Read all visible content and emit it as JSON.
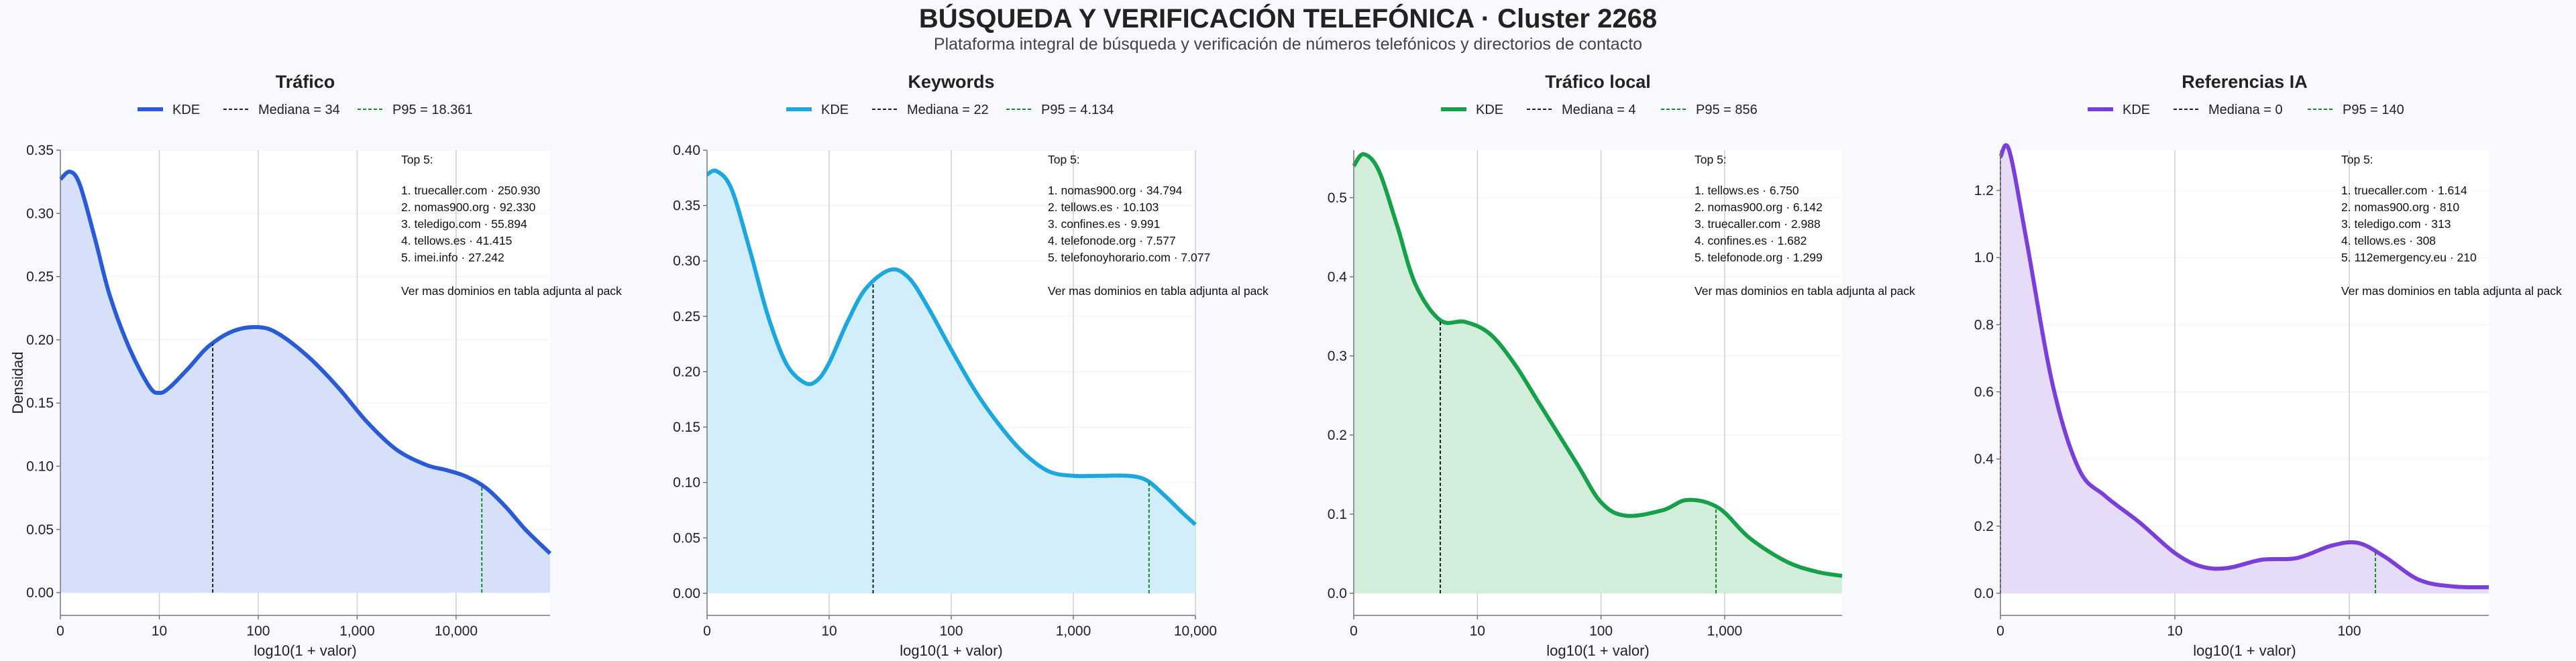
{
  "page": {
    "title": "BÚSQUEDA Y VERIFICACIÓN TELEFÓNICA · Cluster 2268",
    "subtitle": "Plataforma integral de búsqueda y verificación de números telefónicos y directorios de contacto"
  },
  "shared": {
    "xlabel": "log10(1 + valor)",
    "ylabel": "Densidad",
    "legend_kde": "KDE",
    "annotation_header": "Top 5:",
    "annotation_footer": "Ver mas dominios en tabla adjunta al pack"
  },
  "chart_data": [
    {
      "type": "area",
      "title": "Tráfico",
      "color": "#2a5bd7",
      "fill": "#d6e0f8",
      "xlabel": "log10(1 + valor)",
      "ylabel": "Densidad",
      "x_scale": "log10(1+valor)",
      "xlim": [
        0,
        4.95
      ],
      "ylim": [
        -0.018,
        0.35
      ],
      "xticks": [
        0,
        1,
        2,
        3,
        4
      ],
      "xtick_labels": [
        "0",
        "10",
        "100",
        "1,000",
        "10,000"
      ],
      "yticks": [
        0,
        0.05,
        0.1,
        0.15,
        0.2,
        0.25,
        0.3,
        0.35
      ],
      "ytick_labels": [
        "0.00",
        "0.05",
        "0.10",
        "0.15",
        "0.20",
        "0.25",
        "0.30",
        "0.35"
      ],
      "grid": "vertical",
      "legend": [
        "KDE",
        "Mediana = 34",
        "P95 = 18.361"
      ],
      "median_label": "Mediana = 34",
      "p95_label": "P95 = 18.361",
      "median_x": 1.54,
      "p95_x": 4.26,
      "kde": {
        "x": [
          0,
          0.1,
          0.2,
          0.35,
          0.5,
          0.7,
          0.9,
          1.0,
          1.1,
          1.3,
          1.5,
          1.75,
          2.0,
          2.2,
          2.5,
          2.8,
          3.1,
          3.4,
          3.7,
          3.9,
          4.1,
          4.3,
          4.5,
          4.7,
          4.95
        ],
        "y": [
          0.327,
          0.333,
          0.322,
          0.28,
          0.235,
          0.193,
          0.163,
          0.158,
          0.162,
          0.178,
          0.195,
          0.207,
          0.21,
          0.205,
          0.187,
          0.163,
          0.135,
          0.113,
          0.101,
          0.097,
          0.092,
          0.083,
          0.068,
          0.05,
          0.031
        ]
      },
      "top5": [
        "1. truecaller.com · 250.930",
        "2. nomas900.org · 92.330",
        "3. teledigo.com · 55.894",
        "4. tellows.es · 41.415",
        "5. imei.info · 27.242"
      ]
    },
    {
      "type": "area",
      "title": "Keywords",
      "color": "#1ea7dc",
      "fill": "#d2eefa",
      "xlabel": "log10(1 + valor)",
      "ylabel": "Densidad",
      "x_scale": "log10(1+valor)",
      "xlim": [
        0,
        4.0
      ],
      "ylim": [
        -0.02,
        0.4
      ],
      "xticks": [
        0,
        1,
        2,
        3,
        4
      ],
      "xtick_labels": [
        "0",
        "10",
        "100",
        "1,000",
        "10,000"
      ],
      "yticks": [
        0,
        0.05,
        0.1,
        0.15,
        0.2,
        0.25,
        0.3,
        0.35,
        0.4
      ],
      "ytick_labels": [
        "0.00",
        "0.05",
        "0.10",
        "0.15",
        "0.20",
        "0.25",
        "0.30",
        "0.35",
        "0.40"
      ],
      "grid": "vertical",
      "legend": [
        "KDE",
        "Mediana = 22",
        "P95 = 4.134"
      ],
      "median_label": "Mediana = 22",
      "p95_label": "P95 = 4.134",
      "median_x": 1.36,
      "p95_x": 3.62,
      "kde": {
        "x": [
          0,
          0.08,
          0.2,
          0.35,
          0.5,
          0.65,
          0.8,
          0.9,
          1.0,
          1.15,
          1.3,
          1.5,
          1.65,
          1.8,
          2.0,
          2.2,
          2.4,
          2.6,
          2.8,
          3.0,
          3.2,
          3.45,
          3.6,
          3.75,
          3.9,
          4.0
        ],
        "y": [
          0.378,
          0.381,
          0.365,
          0.31,
          0.25,
          0.207,
          0.19,
          0.192,
          0.208,
          0.245,
          0.275,
          0.292,
          0.285,
          0.26,
          0.22,
          0.182,
          0.151,
          0.126,
          0.11,
          0.106,
          0.106,
          0.106,
          0.102,
          0.088,
          0.072,
          0.062
        ]
      },
      "top5": [
        "1. nomas900.org · 34.794",
        "2. tellows.es · 10.103",
        "3. confines.es · 9.991",
        "4. telefonode.org · 7.577",
        "5. telefonoyhorario.com · 7.077"
      ]
    },
    {
      "type": "area",
      "title": "Tráfico local",
      "color": "#17a04a",
      "fill": "#d3eddb",
      "xlabel": "log10(1 + valor)",
      "ylabel": "Densidad",
      "x_scale": "log10(1+valor)",
      "xlim": [
        0,
        3.95
      ],
      "ylim": [
        -0.028,
        0.56
      ],
      "xticks": [
        0,
        1,
        2,
        3
      ],
      "xtick_labels": [
        "0",
        "10",
        "100",
        "1,000"
      ],
      "yticks": [
        0,
        0.1,
        0.2,
        0.3,
        0.4,
        0.5
      ],
      "ytick_labels": [
        "0.0",
        "0.1",
        "0.2",
        "0.3",
        "0.4",
        "0.5"
      ],
      "grid": "vertical",
      "legend": [
        "KDE",
        "Mediana = 4",
        "P95 = 856"
      ],
      "median_label": "Mediana = 4",
      "p95_label": "P95 = 856",
      "median_x": 0.7,
      "p95_x": 2.93,
      "kde": {
        "x": [
          0,
          0.08,
          0.2,
          0.35,
          0.5,
          0.7,
          0.9,
          1.1,
          1.3,
          1.5,
          1.8,
          2.0,
          2.2,
          2.5,
          2.7,
          2.95,
          3.2,
          3.5,
          3.75,
          3.95
        ],
        "y": [
          0.54,
          0.555,
          0.535,
          0.465,
          0.39,
          0.345,
          0.343,
          0.328,
          0.29,
          0.24,
          0.165,
          0.115,
          0.098,
          0.105,
          0.118,
          0.108,
          0.07,
          0.04,
          0.027,
          0.022
        ]
      },
      "top5": [
        "1. tellows.es · 6.750",
        "2. nomas900.org · 6.142",
        "3. truecaller.com · 2.988",
        "4. confines.es · 1.682",
        "5. telefonode.org · 1.299"
      ]
    },
    {
      "type": "area",
      "title": "Referencias IA",
      "color": "#7b3fd9",
      "fill": "#e6dcf8",
      "xlabel": "log10(1 + valor)",
      "ylabel": "Densidad",
      "x_scale": "log10(1+valor)",
      "xlim": [
        0,
        2.8
      ],
      "ylim": [
        -0.066,
        1.32
      ],
      "xticks": [
        0,
        1,
        2
      ],
      "xtick_labels": [
        "0",
        "10",
        "100"
      ],
      "yticks": [
        0,
        0.2,
        0.4,
        0.6,
        0.8,
        1.0,
        1.2
      ],
      "ytick_labels": [
        "0.0",
        "0.2",
        "0.4",
        "0.6",
        "0.8",
        "1.0",
        "1.2"
      ],
      "grid": "vertical",
      "legend": [
        "KDE",
        "Mediana = 0",
        "P95 = 140"
      ],
      "median_label": "Mediana = 0",
      "p95_label": "P95 = 140",
      "median_x": 0,
      "p95_x": 2.15,
      "kde": {
        "x": [
          0,
          0.05,
          0.15,
          0.3,
          0.45,
          0.6,
          0.8,
          1.0,
          1.15,
          1.3,
          1.5,
          1.7,
          1.9,
          2.05,
          2.2,
          2.4,
          2.6,
          2.8
        ],
        "y": [
          1.3,
          1.32,
          1.05,
          0.62,
          0.37,
          0.29,
          0.21,
          0.12,
          0.08,
          0.075,
          0.1,
          0.105,
          0.142,
          0.15,
          0.11,
          0.04,
          0.02,
          0.018
        ]
      },
      "top5": [
        "1. truecaller.com · 1.614",
        "2. nomas900.org · 810",
        "3. teledigo.com · 313",
        "4. tellows.es · 308",
        "5. 112emergency.eu · 210"
      ]
    }
  ]
}
